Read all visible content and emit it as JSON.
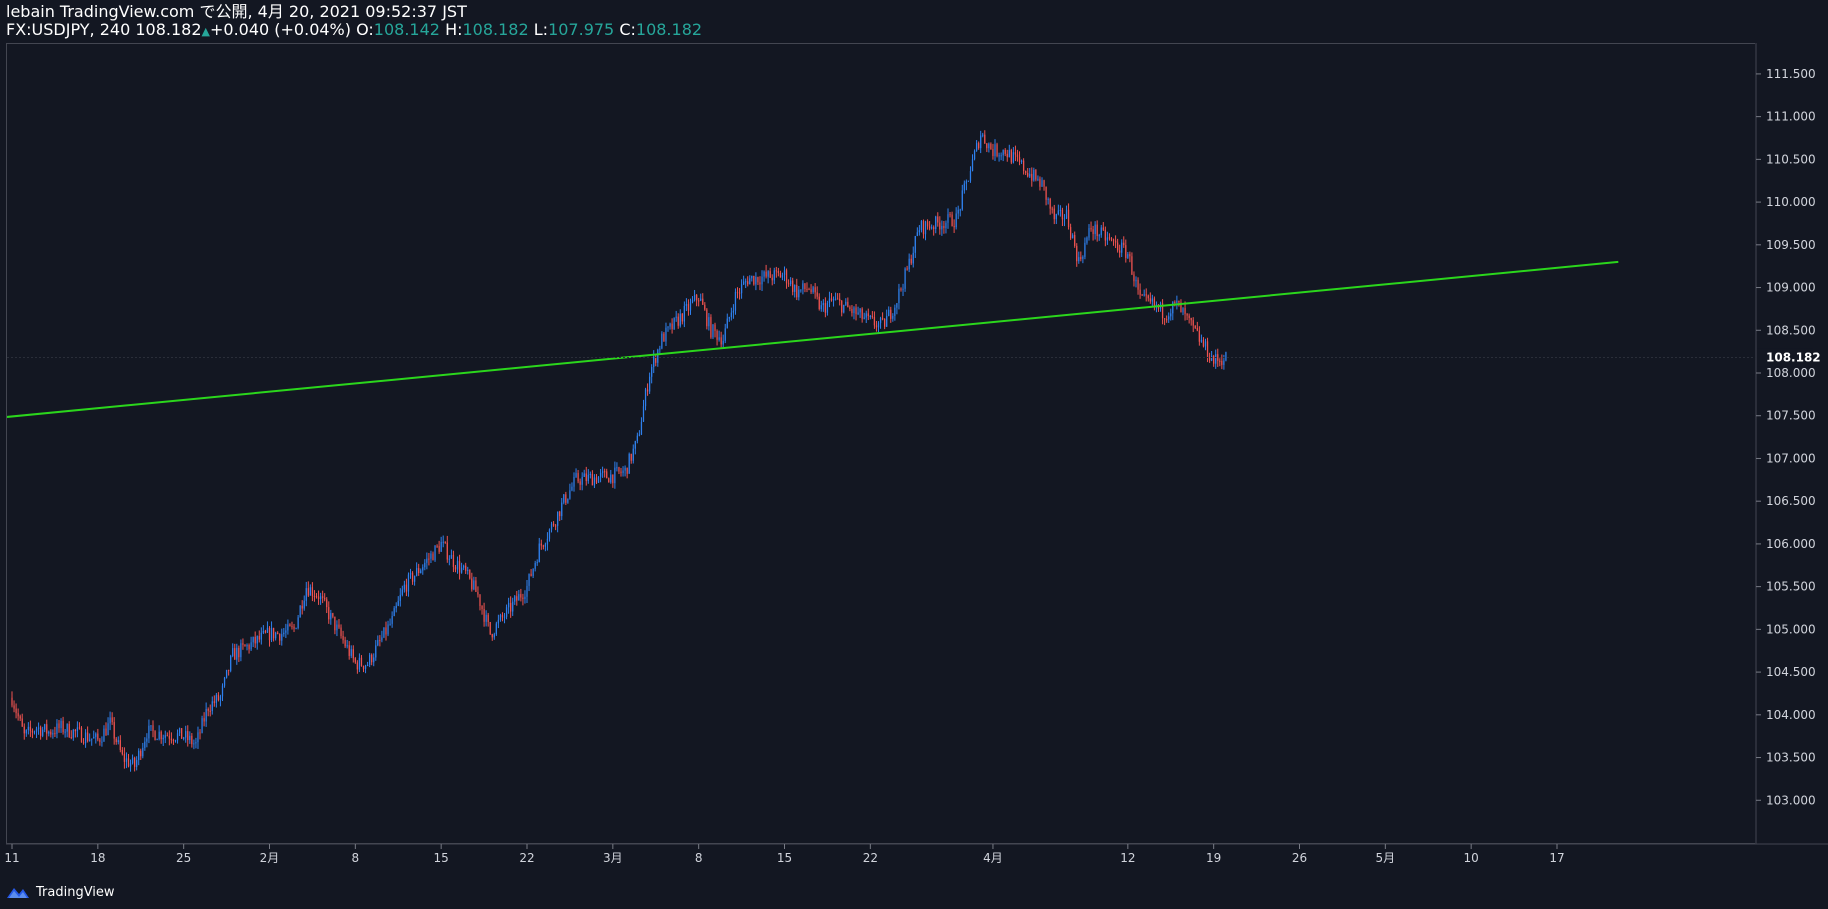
{
  "header": {
    "line1": "lebain TradingView.com で公開, 4月 20, 2021 09:52:37 JST",
    "symbol_interval": "FX:USDJPY, 240",
    "last": "108.182",
    "up_symbol": "▲",
    "change": "+0.040 (+0.04%)",
    "o_label": "O:",
    "o_value": "108.142",
    "h_label": "H:",
    "h_value": "108.182",
    "l_label": "L:",
    "l_value": "107.975",
    "c_label": "C:",
    "c_value": "108.182"
  },
  "footer": {
    "brand": "TradingView"
  },
  "colors": {
    "background": "#131722",
    "up": "#2f80ed",
    "down": "#ef5350",
    "trendline": "#2bd61c",
    "text": "#d1d4dc",
    "accent": "#26a69a"
  },
  "chart_data": {
    "type": "candlestick",
    "symbol": "FX:USDJPY",
    "interval": "240",
    "ylim": [
      102.5,
      111.85
    ],
    "y_ticks": [
      "111.500",
      "111.000",
      "110.500",
      "110.000",
      "109.500",
      "109.000",
      "108.500",
      "108.000",
      "107.500",
      "107.000",
      "106.500",
      "106.000",
      "105.500",
      "105.000",
      "104.500",
      "104.000",
      "103.500",
      "103.000"
    ],
    "last_price_label": "108.182",
    "last_price": 108.182,
    "x_ticks": [
      {
        "label": "11",
        "date": "2021-01-11"
      },
      {
        "label": "18",
        "date": "2021-01-18"
      },
      {
        "label": "25",
        "date": "2021-01-25"
      },
      {
        "label": "2月",
        "date": "2021-02-01"
      },
      {
        "label": "8",
        "date": "2021-02-08"
      },
      {
        "label": "15",
        "date": "2021-02-15"
      },
      {
        "label": "22",
        "date": "2021-02-22"
      },
      {
        "label": "3月",
        "date": "2021-03-01"
      },
      {
        "label": "8",
        "date": "2021-03-08"
      },
      {
        "label": "15",
        "date": "2021-03-15"
      },
      {
        "label": "22",
        "date": "2021-03-22"
      },
      {
        "label": "4月",
        "date": "2021-04-01"
      },
      {
        "label": "12",
        "date": "2021-04-12"
      },
      {
        "label": "19",
        "date": "2021-04-19"
      },
      {
        "label": "26",
        "date": "2021-04-26"
      },
      {
        "label": "5月",
        "date": "2021-05-03"
      },
      {
        "label": "10",
        "date": "2021-05-10"
      },
      {
        "label": "17",
        "date": "2021-05-17"
      }
    ],
    "closes": [
      [
        "2021-01-11",
        104.2
      ],
      [
        "2021-01-12",
        103.75
      ],
      [
        "2021-01-13",
        103.85
      ],
      [
        "2021-01-14",
        103.8
      ],
      [
        "2021-01-15",
        103.85
      ],
      [
        "2021-01-18",
        103.7
      ],
      [
        "2021-01-19",
        103.9
      ],
      [
        "2021-01-20",
        103.5
      ],
      [
        "2021-01-21",
        103.4
      ],
      [
        "2021-01-22",
        103.8
      ],
      [
        "2021-01-25",
        103.75
      ],
      [
        "2021-01-26",
        103.65
      ],
      [
        "2021-01-27",
        104.1
      ],
      [
        "2021-01-28",
        104.2
      ],
      [
        "2021-01-29",
        104.7
      ],
      [
        "2021-02-01",
        104.95
      ],
      [
        "2021-02-02",
        104.95
      ],
      [
        "2021-02-03",
        105.0
      ],
      [
        "2021-02-04",
        105.5
      ],
      [
        "2021-02-05",
        105.4
      ],
      [
        "2021-02-08",
        104.6
      ],
      [
        "2021-02-09",
        104.6
      ],
      [
        "2021-02-10",
        104.85
      ],
      [
        "2021-02-11",
        105.1
      ],
      [
        "2021-02-12",
        105.5
      ],
      [
        "2021-02-15",
        106.0
      ],
      [
        "2021-02-16",
        105.8
      ],
      [
        "2021-02-17",
        105.65
      ],
      [
        "2021-02-18",
        105.4
      ],
      [
        "2021-02-19",
        104.95
      ],
      [
        "2021-02-22",
        105.5
      ],
      [
        "2021-02-23",
        105.95
      ],
      [
        "2021-02-24",
        106.2
      ],
      [
        "2021-02-25",
        106.5
      ],
      [
        "2021-02-26",
        106.75
      ],
      [
        "2021-03-01",
        106.8
      ],
      [
        "2021-03-02",
        106.85
      ],
      [
        "2021-03-03",
        107.2
      ],
      [
        "2021-03-04",
        108.0
      ],
      [
        "2021-03-05",
        108.4
      ],
      [
        "2021-03-08",
        108.9
      ],
      [
        "2021-03-09",
        108.5
      ],
      [
        "2021-03-10",
        108.4
      ],
      [
        "2021-03-11",
        108.9
      ],
      [
        "2021-03-12",
        109.1
      ],
      [
        "2021-03-15",
        109.15
      ],
      [
        "2021-03-16",
        108.95
      ],
      [
        "2021-03-17",
        109.0
      ],
      [
        "2021-03-18",
        108.75
      ],
      [
        "2021-03-19",
        108.85
      ],
      [
        "2021-03-22",
        108.6
      ],
      [
        "2021-03-23",
        108.55
      ],
      [
        "2021-03-24",
        108.8
      ],
      [
        "2021-03-25",
        109.2
      ],
      [
        "2021-03-26",
        109.7
      ],
      [
        "2021-03-29",
        109.8
      ],
      [
        "2021-03-30",
        110.3
      ],
      [
        "2021-03-31",
        110.8
      ],
      [
        "2021-04-01",
        110.6
      ],
      [
        "2021-04-02",
        110.6
      ],
      [
        "2021-04-05",
        110.2
      ],
      [
        "2021-04-06",
        109.8
      ],
      [
        "2021-04-07",
        109.85
      ],
      [
        "2021-04-08",
        109.3
      ],
      [
        "2021-04-09",
        109.7
      ],
      [
        "2021-04-12",
        109.4
      ],
      [
        "2021-04-13",
        108.85
      ],
      [
        "2021-04-14",
        108.8
      ],
      [
        "2021-04-15",
        108.7
      ],
      [
        "2021-04-16",
        108.8
      ],
      [
        "2021-04-19",
        108.14
      ],
      [
        "2021-04-20",
        108.18
      ]
    ],
    "trendline": {
      "start": {
        "date": "2021-01-08",
        "price": 107.45
      },
      "end": {
        "date": "2021-05-22",
        "price": 109.3
      }
    },
    "grid": false,
    "legend": "none"
  }
}
